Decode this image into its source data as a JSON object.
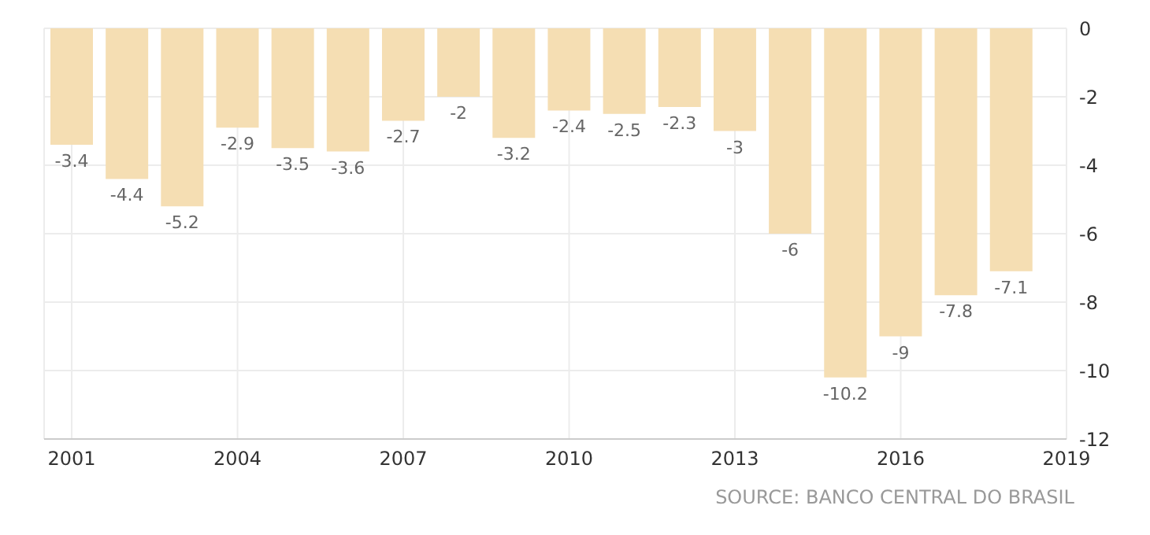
{
  "chart_data": {
    "type": "bar",
    "x": [
      2001,
      2002,
      2003,
      2004,
      2005,
      2006,
      2007,
      2008,
      2009,
      2010,
      2011,
      2012,
      2013,
      2014,
      2015,
      2016,
      2017,
      2018
    ],
    "values": [
      -3.4,
      -4.4,
      -5.2,
      -2.9,
      -3.5,
      -3.6,
      -2.7,
      -2,
      -3.2,
      -2.4,
      -2.5,
      -2.3,
      -3,
      -6,
      -10.2,
      -9,
      -7.8,
      -7.1
    ],
    "color": "#f5deb3",
    "xlim": [
      2000.5,
      2019
    ],
    "xticks": [
      2001,
      2004,
      2007,
      2010,
      2013,
      2016,
      2019
    ],
    "ylim": [
      -12,
      0
    ],
    "yticks": [
      -12,
      -10,
      -8,
      -6,
      -4,
      -2,
      0
    ],
    "grid": true,
    "data_labels": true,
    "annotations": [
      "SOURCE: BANCO CENTRAL DO BRASIL"
    ]
  }
}
